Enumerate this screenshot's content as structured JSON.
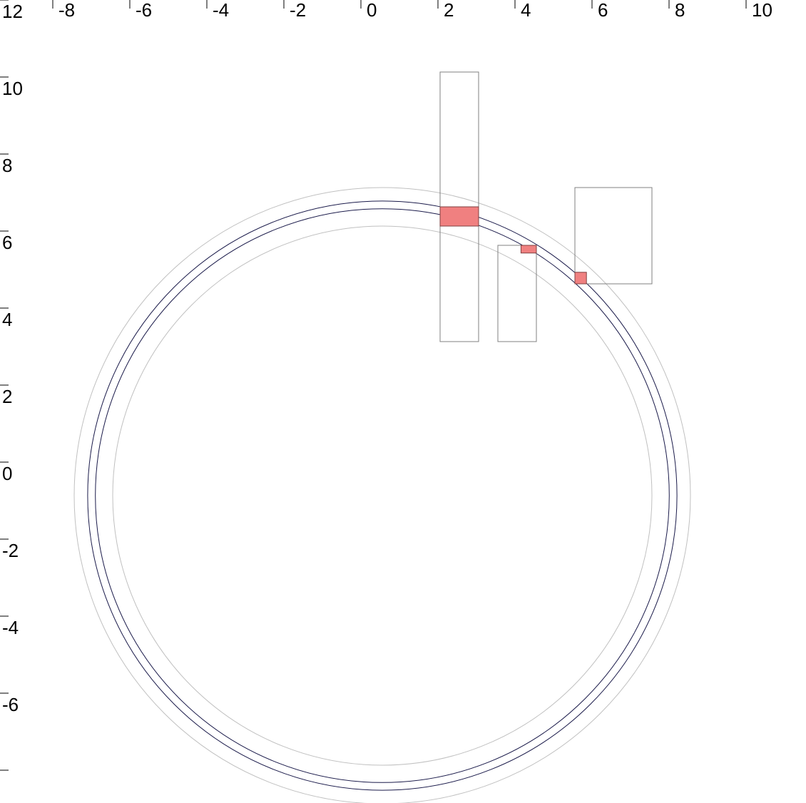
{
  "chart_data": {
    "type": "diagram",
    "x_axis": {
      "position": "top",
      "range": [
        -9,
        11
      ],
      "ticks": [
        {
          "value": -8,
          "label": "-8"
        },
        {
          "value": -6,
          "label": "-6"
        },
        {
          "value": -4,
          "label": "-4"
        },
        {
          "value": -2,
          "label": "-2"
        },
        {
          "value": 0,
          "label": "0"
        },
        {
          "value": 2,
          "label": "2"
        },
        {
          "value": 4,
          "label": "4"
        },
        {
          "value": 6,
          "label": "6"
        },
        {
          "value": 8,
          "label": "8"
        },
        {
          "value": 10,
          "label": "10"
        }
      ]
    },
    "y_axis": {
      "position": "left",
      "range": [
        -7.8,
        13
      ],
      "ticks": [
        {
          "value": 12,
          "label": "12"
        },
        {
          "value": 10,
          "label": "10"
        },
        {
          "value": 8,
          "label": "8"
        },
        {
          "value": 6,
          "label": "6"
        },
        {
          "value": 4,
          "label": "4"
        },
        {
          "value": 2,
          "label": "2"
        },
        {
          "value": 0,
          "label": "0"
        },
        {
          "value": -2,
          "label": "-2"
        },
        {
          "value": -4,
          "label": "-4"
        },
        {
          "value": -6,
          "label": "-6"
        },
        {
          "value": -8,
          "label": ""
        }
      ]
    },
    "circles": [
      {
        "role": "outer-band",
        "cx": 0,
        "cy": 0,
        "r": 8.0,
        "color": "#c0c0c0"
      },
      {
        "role": "track-outer",
        "cx": 0,
        "cy": 0,
        "r": 7.65,
        "color": "#1a1a4a"
      },
      {
        "role": "track-inner",
        "cx": 0,
        "cy": 0,
        "r": 7.45,
        "color": "#1a1a4a"
      },
      {
        "role": "inner-band",
        "cx": 0,
        "cy": 0,
        "r": 7.0,
        "color": "#c0c0c0"
      }
    ],
    "boxes": [
      {
        "x0": 1.5,
        "x1": 2.5,
        "y0": 4.0,
        "y1": 11.0,
        "stroke": "#808080"
      },
      {
        "x0": 3.0,
        "x1": 4.0,
        "y0": 4.0,
        "y1": 6.5,
        "stroke": "#808080"
      },
      {
        "x0": 5.0,
        "x1": 7.0,
        "y0": 5.5,
        "y1": 8.0,
        "stroke": "#808080"
      }
    ],
    "highlights": [
      {
        "x0": 1.5,
        "x1": 2.5,
        "y0": 7.0,
        "y1": 7.5,
        "fill": "#f08080",
        "stroke": "#804040"
      },
      {
        "x0": 3.6,
        "x1": 4.0,
        "y0": 6.3,
        "y1": 6.5,
        "fill": "#f08080",
        "stroke": "#804040"
      },
      {
        "x0": 5.0,
        "x1": 5.3,
        "y0": 5.5,
        "y1": 5.8,
        "fill": "#f08080",
        "stroke": "#804040"
      }
    ]
  }
}
